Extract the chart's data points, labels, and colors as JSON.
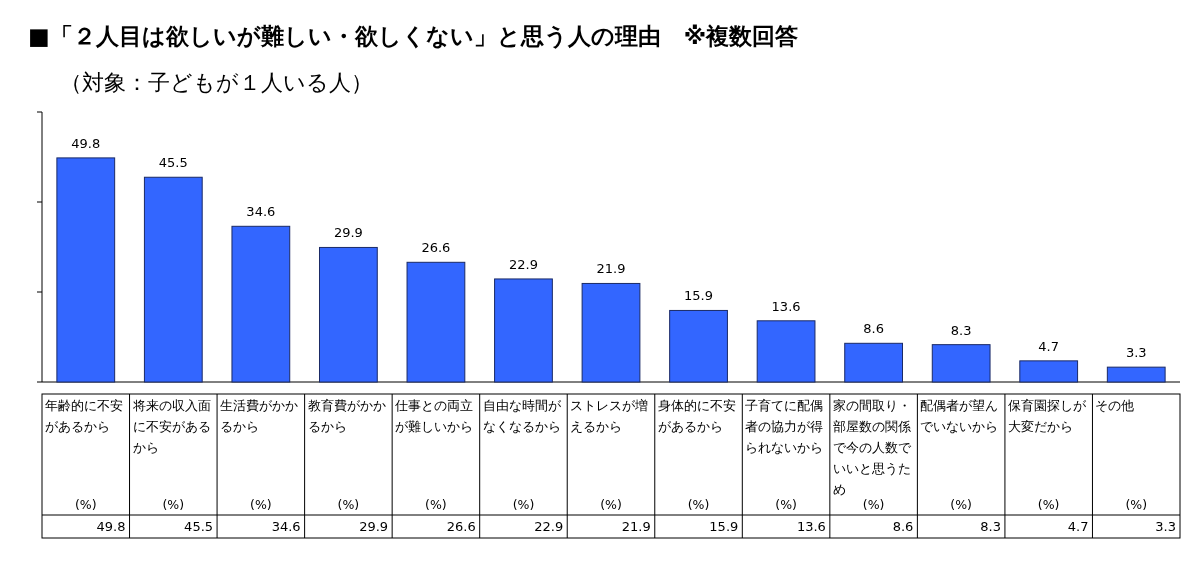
{
  "chart_data": {
    "type": "bar",
    "title": "■「２人目は欲しいが難しい・欲しくない」と思う人の理由　※複数回答",
    "subtitle": "（対象：子どもが１人いる人）",
    "annotations": [
      "(%)",
      "(%)",
      "(%)",
      "(%)",
      "(%)",
      "(%)",
      "(%)",
      "(%)",
      "(%)",
      "(%)",
      "(%)",
      "(%)",
      "(%)"
    ],
    "categories": [
      "年齢的に不安があるから",
      "将来の収入面に不安があるから",
      "生活費がかかるから",
      "教育費がかかるから",
      "仕事との両立が難しいから",
      "自由な時間がなくなるから",
      "ストレスが増えるから",
      "身体的に不安があるから",
      "子育てに配偶者の協力が得られないから",
      "家の間取り・部屋数の関係で今の人数でいいと思うため",
      "配偶者が望んでいないから",
      "保育園探しが大変だから",
      "その他"
    ],
    "values": [
      49.8,
      45.5,
      34.6,
      29.9,
      26.6,
      22.9,
      21.9,
      15.9,
      13.6,
      8.6,
      8.3,
      4.7,
      3.3
    ],
    "value_labels": [
      "49.8",
      "45.5",
      "34.6",
      "29.9",
      "26.6",
      "22.9",
      "21.9",
      "15.9",
      "13.6",
      "8.6",
      "8.3",
      "4.7",
      "3.3"
    ],
    "color": "#3366ff",
    "ylim": [
      0,
      60
    ],
    "yticks": [
      {
        "value": 0,
        "label": null
      },
      {
        "value": 20,
        "label": null
      },
      {
        "value": 40,
        "label": null
      },
      {
        "value": 60,
        "label": null
      }
    ],
    "tick_labels": "x",
    "data_labels": true
  }
}
